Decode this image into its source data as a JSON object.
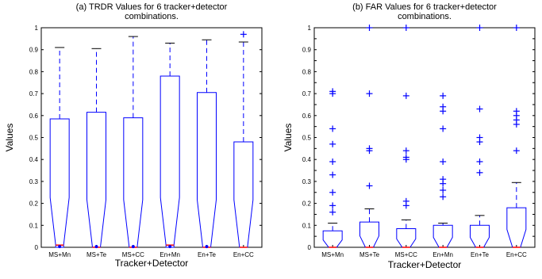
{
  "chart_data": [
    {
      "type": "boxplot",
      "title": "(a) TRDR Values for 6 tracker+detector combinations.",
      "title_lines": [
        "(a) TRDR Values for 6 tracker+detector",
        "combinations."
      ],
      "xlabel": "Tracker+Detector",
      "ylabel": "Values",
      "ylim": [
        0,
        1
      ],
      "yticks": [
        0,
        0.1,
        0.2,
        0.3,
        0.4,
        0.5,
        0.6,
        0.7,
        0.8,
        0.9,
        1
      ],
      "ytick_labels": [
        "0",
        "0.1",
        "0.2",
        "0.3",
        "0.4",
        "0.5",
        "0.6",
        "0.7",
        "0.8",
        "0.9",
        "1"
      ],
      "notched": true,
      "grid": false,
      "categories": [
        "MS+Mn",
        "MS+Te",
        "MS+CC",
        "En+Mn",
        "En+Te",
        "En+CC"
      ],
      "boxes": [
        {
          "min": 0,
          "q1": 0,
          "median": 0.01,
          "q3": 0.585,
          "max": 0.91,
          "outliers": [],
          "mean": 0.003
        },
        {
          "min": 0,
          "q1": 0,
          "median": 0,
          "q3": 0.615,
          "max": 0.905,
          "outliers": [],
          "mean": 0.003
        },
        {
          "min": 0,
          "q1": 0,
          "median": 0,
          "q3": 0.59,
          "max": 0.96,
          "outliers": [],
          "mean": 0.003
        },
        {
          "min": 0,
          "q1": 0,
          "median": 0.01,
          "q3": 0.78,
          "max": 0.93,
          "outliers": [],
          "mean": 0.003
        },
        {
          "min": 0,
          "q1": 0,
          "median": 0,
          "q3": 0.705,
          "max": 0.945,
          "outliers": [],
          "mean": 0.003
        },
        {
          "min": 0,
          "q1": 0,
          "median": 0,
          "q3": 0.48,
          "max": 0.935,
          "outliers": [
            0.97
          ],
          "mean": null
        }
      ],
      "colors": {
        "box": "#0000ff",
        "median": "#ff0000",
        "outlier": "#0000ff",
        "whisker_cap": "#000000"
      }
    },
    {
      "type": "boxplot",
      "title": "(b) FAR Values for 6 tracker+detector combinations.",
      "title_lines": [
        "(b) FAR Values for 6 tracker+detector",
        "combinations."
      ],
      "xlabel": "Tracker+Detector",
      "ylabel": "Values",
      "ylim": [
        0,
        1
      ],
      "yticks": [
        0,
        0.05,
        0.1,
        0.15,
        0.2,
        0.25,
        0.3,
        0.35,
        0.4,
        0.45,
        0.5,
        0.55,
        0.6,
        0.65,
        0.7,
        0.75,
        0.8,
        0.85,
        0.9,
        0.95,
        1
      ],
      "ytick_labels": [
        "0",
        "0.05",
        "0.1",
        "0.15",
        "0.2",
        "0.25",
        "0.3",
        "0.35",
        "0.4",
        "0.45",
        "0.5",
        "0.55",
        "0.6",
        "0.65",
        "0.7",
        "0.75",
        "0.8",
        "0.85",
        "0.9",
        "0.95",
        "1"
      ],
      "notched": true,
      "grid": false,
      "categories": [
        "MS+Mn",
        "MS+Te",
        "MS+CC",
        "En+Mn",
        "En+Te",
        "En+CC"
      ],
      "boxes": [
        {
          "min": 0,
          "q1": 0,
          "median": 0,
          "q3": 0.075,
          "max": 0.11,
          "outliers": [
            0.16,
            0.19,
            0.25,
            0.33,
            0.39,
            0.47,
            0.54,
            0.7,
            0.71
          ],
          "mean": null
        },
        {
          "min": 0,
          "q1": 0,
          "median": 0,
          "q3": 0.115,
          "max": 0.175,
          "outliers": [
            0.28,
            0.44,
            0.45,
            0.7,
            1.0
          ],
          "mean": null
        },
        {
          "min": 0,
          "q1": 0,
          "median": 0,
          "q3": 0.085,
          "max": 0.125,
          "outliers": [
            0.19,
            0.21,
            0.4,
            0.41,
            0.44,
            0.69,
            1.0
          ],
          "mean": null
        },
        {
          "min": 0,
          "q1": 0,
          "median": 0,
          "q3": 0.1,
          "max": 0.11,
          "outliers": [
            0.23,
            0.26,
            0.29,
            0.31,
            0.39,
            0.54,
            0.62,
            0.64,
            0.69
          ],
          "mean": null
        },
        {
          "min": 0,
          "q1": 0,
          "median": 0,
          "q3": 0.1,
          "max": 0.145,
          "outliers": [
            0.34,
            0.39,
            0.48,
            0.5,
            0.63,
            1.0
          ],
          "mean": null
        },
        {
          "min": 0,
          "q1": 0,
          "median": 0,
          "q3": 0.18,
          "max": 0.295,
          "outliers": [
            0.44,
            0.56,
            0.58,
            0.6,
            0.62,
            1.0
          ],
          "mean": null
        }
      ],
      "colors": {
        "box": "#0000ff",
        "median": "#ff0000",
        "outlier": "#0000ff",
        "whisker_cap": "#000000"
      }
    }
  ]
}
